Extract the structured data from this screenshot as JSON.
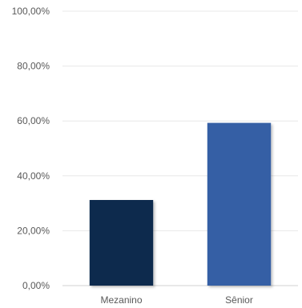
{
  "chart_data": {
    "type": "bar",
    "title": "",
    "xlabel": "",
    "ylabel": "",
    "categories": [
      "Mezanino",
      "Sênior"
    ],
    "values": [
      31.2,
      59.3
    ],
    "ylim": [
      0,
      100
    ],
    "yticks": [
      0,
      20,
      40,
      60,
      80,
      100
    ],
    "ytick_labels": [
      "0,00%",
      "20,00%",
      "40,00%",
      "60,00%",
      "80,00%",
      "100,00%"
    ],
    "bar_colors": [
      "#0d2b4e",
      "#365fa5"
    ],
    "grid": true,
    "gridline_color": "#e8e8e8",
    "axis_color": "#d0d0d0"
  }
}
